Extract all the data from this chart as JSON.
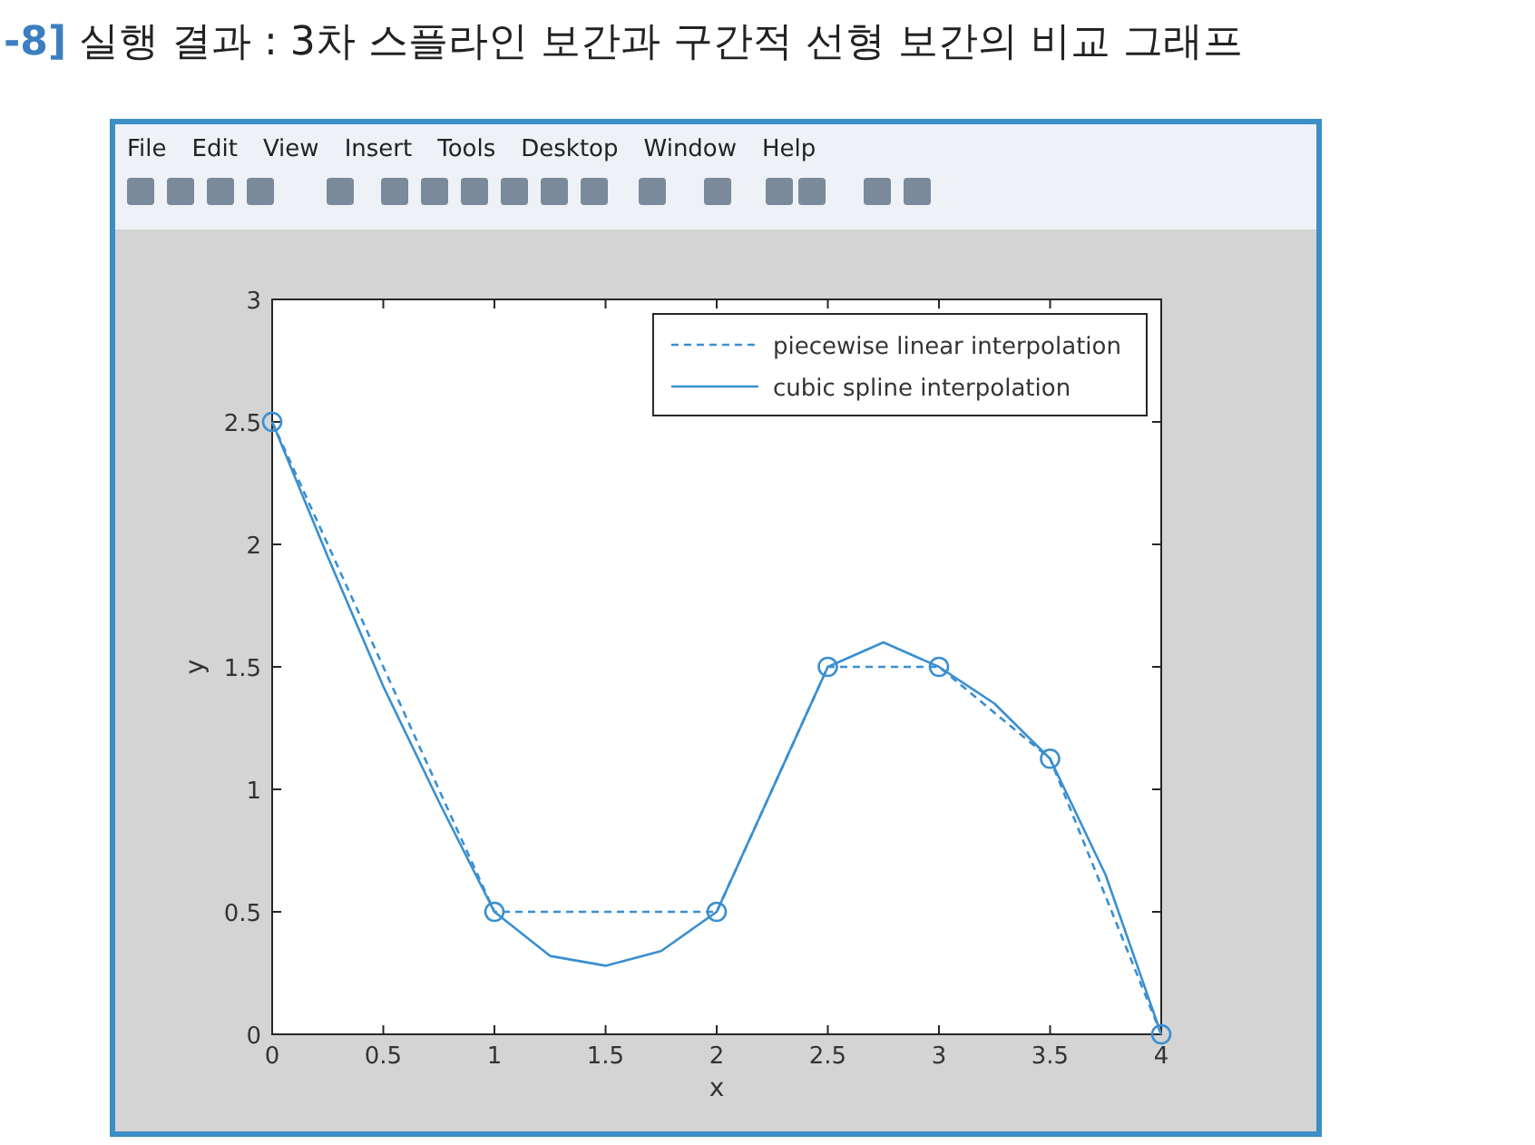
{
  "chart_data": {
    "type": "line",
    "title": "**-8]** 실행 결과 : 3차 스플라인 보간과 구간적 선형 보간의 비교 그래프",
    "xlabel": "x",
    "ylabel": "y",
    "annotations": [
      "File",
      "Edit",
      "View",
      "Insert",
      "Tools",
      "Desktop",
      "Window",
      "Help"
    ],
    "xlim": [
      0,
      4
    ],
    "ylim": [
      0,
      3
    ],
    "xticks": [
      0,
      0.5,
      1,
      1.5,
      2,
      2.5,
      3,
      3.5,
      4
    ],
    "yticks": [
      0,
      0.5,
      1,
      1.5,
      2,
      2.5,
      3
    ],
    "grid": false,
    "legend": "top right",
    "series": [
      {
        "name": "piecewise linear interpolation",
        "color": "#3a8fd0",
        "line_style": "dashed",
        "marker": "none",
        "x": [
          0,
          1,
          2,
          2.5,
          3,
          3.5,
          4
        ],
        "values": [
          2.5,
          0.5,
          0.5,
          1.5,
          1.5,
          1.125,
          0
        ]
      },
      {
        "name": "cubic spline interpolation",
        "color": "#3a8fd0",
        "line_style": "solid",
        "marker": "none",
        "x": [
          0,
          0.25,
          0.5,
          0.75,
          1,
          1.25,
          1.5,
          1.75,
          2,
          2.25,
          2.5,
          2.75,
          3,
          3.25,
          3.5,
          3.75,
          4
        ],
        "values": [
          2.5,
          1.95,
          1.42,
          0.95,
          0.5,
          0.32,
          0.28,
          0.34,
          0.5,
          1.0,
          1.5,
          1.6,
          1.5,
          1.35,
          1.125,
          0.65,
          0
        ]
      },
      {
        "type": "scatter",
        "color": "#3a8fd0",
        "marker": "circle",
        "x": [
          0,
          1,
          2,
          2.5,
          3,
          3.5,
          4
        ],
        "values": [
          2.5,
          0.5,
          0.5,
          1.5,
          1.5,
          1.125,
          0
        ]
      }
    ]
  }
}
